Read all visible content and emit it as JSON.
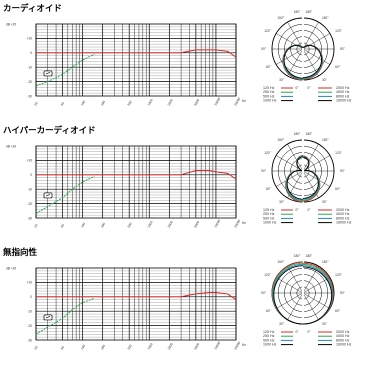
{
  "chart_data": [
    {
      "type": "line",
      "title": "カーディオイド",
      "freq_response": {
        "ylabel": "dB",
        "y_ticks": [
          "+20",
          "+10",
          "0",
          "-10",
          "-20",
          "-30"
        ],
        "x_unit": "Hz",
        "x_ticks": [
          "20",
          "50",
          "100",
          "200",
          "500",
          "1000",
          "2000",
          "5000",
          "10000",
          "20000"
        ],
        "series": [
          {
            "color": "#d62828",
            "x": [
              20,
              50,
              100,
              200,
              500,
              1000,
              2000,
              3000,
              5000,
              8000,
              10000,
              15000,
              20000
            ],
            "y": [
              0,
              0,
              0,
              0,
              0,
              0,
              0,
              0,
              2,
              2,
              2,
              1,
              -3
            ]
          },
          {
            "color": "#2aa84a",
            "x": [
              20,
              30,
              50,
              70,
              100,
              150
            ],
            "y": [
              -23,
              -20,
              -15,
              -10,
              -5,
              -1
            ]
          }
        ]
      },
      "polar": {
        "angle_labels": [
          "180°",
          "150°",
          "120°",
          "90°",
          "60°",
          "30°",
          "0°"
        ],
        "legend_left": [
          "125 Hz",
          "250 Hz",
          "500 Hz",
          "1000 Hz"
        ],
        "legend_right": [
          "2000 Hz",
          "4000 Hz",
          "8000 Hz",
          "16000 Hz"
        ],
        "legend_colors": [
          "#d62828",
          "#2aa84a",
          "#1e88c8",
          "#000000"
        ],
        "pattern": "cardioid"
      }
    },
    {
      "type": "line",
      "title": "ハイパーカーディオイド",
      "freq_response": {
        "ylabel": "dB",
        "y_ticks": [
          "+20",
          "+10",
          "0",
          "-10",
          "-20",
          "-30"
        ],
        "x_unit": "Hz",
        "x_ticks": [
          "20",
          "50",
          "100",
          "200",
          "500",
          "1000",
          "2000",
          "5000",
          "10000",
          "20000"
        ],
        "series": [
          {
            "color": "#d62828",
            "x": [
              20,
              50,
              100,
              200,
              500,
              1000,
              2000,
              3000,
              5000,
              8000,
              10000,
              15000,
              20000
            ],
            "y": [
              0,
              0,
              0,
              0,
              0,
              0,
              0,
              0,
              3,
              3,
              2,
              1,
              -3
            ]
          },
          {
            "color": "#2aa84a",
            "x": [
              20,
              30,
              50,
              70,
              100,
              150
            ],
            "y": [
              -27,
              -22,
              -16,
              -10,
              -5,
              -1
            ]
          }
        ]
      },
      "polar": {
        "angle_labels": [
          "180°",
          "150°",
          "120°",
          "90°",
          "60°",
          "30°",
          "0°"
        ],
        "legend_left": [
          "125 Hz",
          "250 Hz",
          "500 Hz",
          "1000 Hz"
        ],
        "legend_right": [
          "2000 Hz",
          "4000 Hz",
          "8000 Hz",
          "16000 Hz"
        ],
        "legend_colors": [
          "#d62828",
          "#2aa84a",
          "#1e88c8",
          "#000000"
        ],
        "pattern": "hypercardioid"
      }
    },
    {
      "type": "line",
      "title": "無指向性",
      "freq_response": {
        "ylabel": "dB",
        "y_ticks": [
          "+20",
          "+10",
          "0",
          "-10",
          "-20",
          "-30"
        ],
        "x_unit": "Hz",
        "x_ticks": [
          "20",
          "50",
          "100",
          "200",
          "500",
          "1000",
          "2000",
          "5000",
          "10000",
          "20000"
        ],
        "series": [
          {
            "color": "#d62828",
            "x": [
              20,
              50,
              100,
              200,
              500,
              1000,
              2000,
              3000,
              5000,
              8000,
              10000,
              15000,
              20000
            ],
            "y": [
              0,
              0,
              0,
              0,
              0,
              0,
              0,
              0,
              2,
              3,
              3,
              2,
              -2
            ]
          },
          {
            "color": "#2aa84a",
            "x": [
              20,
              30,
              50,
              70,
              100,
              150
            ],
            "y": [
              -26,
              -21,
              -15,
              -9,
              -4,
              -1
            ]
          }
        ]
      },
      "polar": {
        "angle_labels": [
          "180°",
          "150°",
          "120°",
          "90°",
          "60°",
          "30°",
          "0°"
        ],
        "legend_left": [
          "125 Hz",
          "250 Hz",
          "500 Hz",
          "1000 Hz"
        ],
        "legend_right": [
          "2000 Hz",
          "4000 Hz",
          "8000 Hz",
          "16000 Hz"
        ],
        "legend_colors": [
          "#d62828",
          "#2aa84a",
          "#1e88c8",
          "#000000"
        ],
        "pattern": "omni"
      }
    }
  ]
}
